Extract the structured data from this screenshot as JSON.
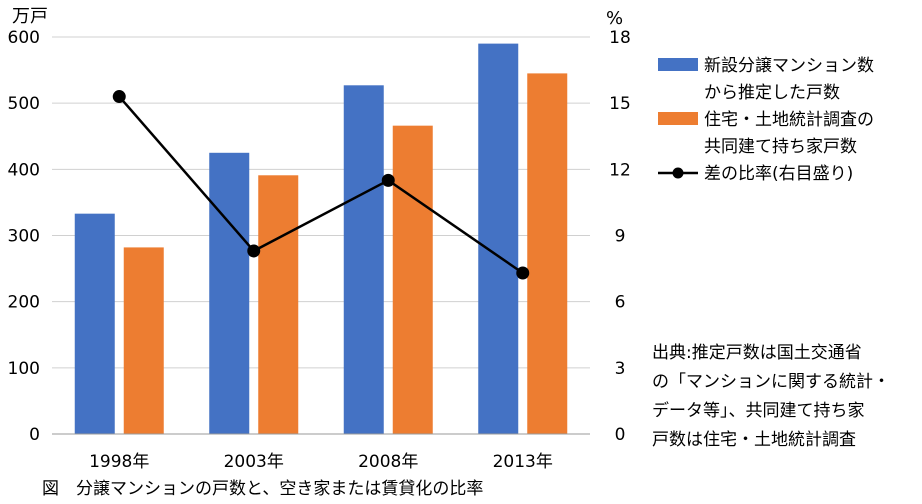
{
  "chart_data": {
    "type": "bar",
    "title": "",
    "caption": "図　分譲マンションの戸数と、空き家または賃貸化の比率",
    "categories": [
      "1998年",
      "2003年",
      "2008年",
      "2013年"
    ],
    "left_axis": {
      "unit": "万戸",
      "ylim": [
        0,
        600
      ],
      "ticks": [
        "0",
        "100",
        "200",
        "300",
        "400",
        "500",
        "600"
      ]
    },
    "right_axis": {
      "unit": "%",
      "ylim": [
        0,
        18
      ],
      "ticks": [
        "0",
        "3",
        "6",
        "9",
        "12",
        "15",
        "18"
      ]
    },
    "grid": true,
    "legend_position": "right",
    "series": [
      {
        "type": "bar",
        "axis": "left",
        "name_lines": [
          "新設分譲マンション数",
          "から推定した戸数"
        ],
        "color": "#4472C4",
        "values": [
          333,
          425,
          527,
          590
        ]
      },
      {
        "type": "bar",
        "axis": "left",
        "name_lines": [
          "住宅・土地統計調査の",
          "共同建て持ち家戸数"
        ],
        "color": "#ED7D31",
        "values": [
          282,
          391,
          466,
          545
        ]
      },
      {
        "type": "line",
        "axis": "right",
        "name_lines": [
          "差の比率(右目盛り)"
        ],
        "color": "#000000",
        "values": [
          15.3,
          8.3,
          11.5,
          7.3
        ]
      }
    ],
    "source_lines": [
      "出典:推定戸数は国土交通省",
      "の「マンションに関する統計・",
      "データ等」、共同建て持ち家",
      "戸数は住宅・土地統計調査"
    ]
  }
}
